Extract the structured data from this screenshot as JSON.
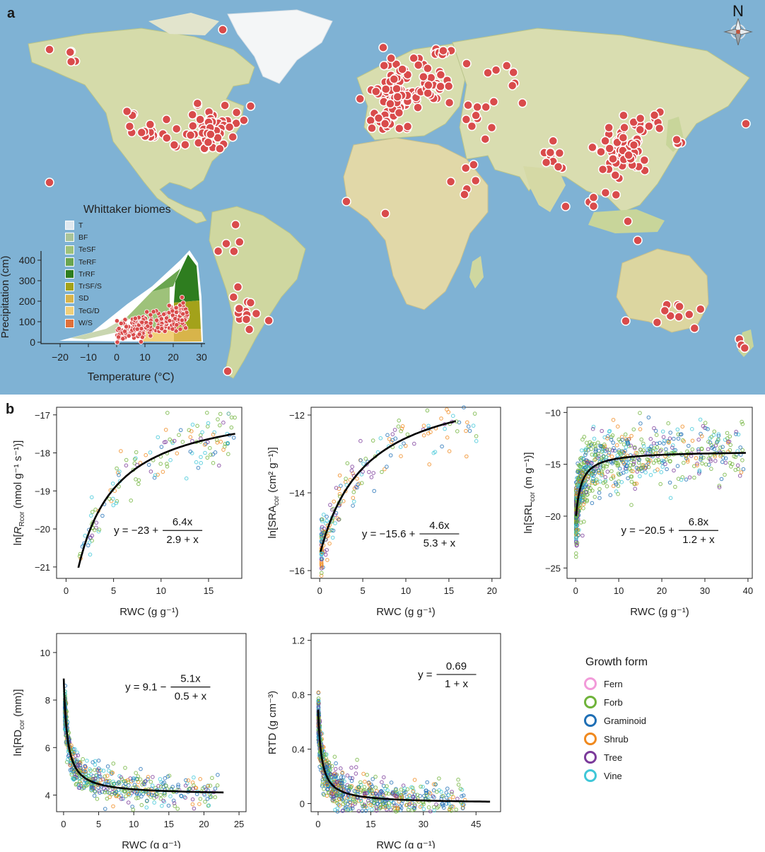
{
  "panel_a": {
    "letter": "a",
    "compass_label": "N",
    "biome_legend": {
      "title": "Whittaker biomes",
      "items": [
        {
          "label": "T",
          "color": "#dfe8ef"
        },
        {
          "label": "BF",
          "color": "#a9c49a"
        },
        {
          "label": "TeSF",
          "color": "#9ec27a"
        },
        {
          "label": "TeRF",
          "color": "#6aa54f"
        },
        {
          "label": "TrRF",
          "color": "#2e7d1f"
        },
        {
          "label": "TrSF/S",
          "color": "#a3a21a"
        },
        {
          "label": "SD",
          "color": "#d8b44a"
        },
        {
          "label": "TeG/D",
          "color": "#f0cf7a"
        },
        {
          "label": "W/S",
          "color": "#e0703a"
        }
      ]
    },
    "inset_chart": {
      "xlabel": "Temperature (°C)",
      "ylabel": "Precipitation (cm)",
      "xticks": [
        "-20",
        "-10",
        "0",
        "10",
        "20",
        "30"
      ],
      "yticks": [
        "0",
        "100",
        "200",
        "300",
        "400"
      ]
    },
    "colors": {
      "ocean": "#7fb2d4",
      "land": "#d9ddb0",
      "site": "#d94b4b"
    }
  },
  "panel_b": {
    "letter": "b",
    "growth_legend": {
      "title": "Growth form",
      "items": [
        {
          "label": "Fern",
          "color": "#f29ad9"
        },
        {
          "label": "Forb",
          "color": "#6fb33a"
        },
        {
          "label": "Graminoid",
          "color": "#1f6fb5"
        },
        {
          "label": "Shrub",
          "color": "#f0891e"
        },
        {
          "label": "Tree",
          "color": "#7b3a9a"
        },
        {
          "label": "Vine",
          "color": "#3fc7d8"
        }
      ]
    }
  },
  "chart_data": [
    {
      "type": "scatter",
      "id": "rr",
      "xlabel": "RWC (g g⁻¹)",
      "ylabel_pre": "ln[",
      "ylabel_main": "R",
      "ylabel_sub": "Rcor",
      "ylabel_post": " (nmol g⁻¹ s⁻¹)]",
      "xlim": [
        -1,
        18.5
      ],
      "ylim": [
        -21.3,
        -16.8
      ],
      "xticks": [
        0,
        5,
        10,
        15
      ],
      "yticks": [
        -17,
        -18,
        -19,
        -20,
        -21
      ],
      "ytick_labels": [
        "-17",
        "-18",
        "-19",
        "-20",
        "-21"
      ],
      "fit": {
        "a": -23,
        "sign": 1,
        "b": 6.4,
        "c": 2.9,
        "xmin": 1.3,
        "xmax": 17.8
      },
      "equation": {
        "lhs": "y = −23 +",
        "num": "6.4x",
        "den": "2.9 + x"
      },
      "cloud": {
        "n": 150,
        "xdist": "uniform",
        "xmin": 1.3,
        "xmax": 17.8,
        "sd": 0.38,
        "colors": [
          "#6fb33a",
          "#6fb33a",
          "#1f6fb5",
          "#f0891e",
          "#7b3a9a",
          "#3fc7d8"
        ]
      }
    },
    {
      "type": "scatter",
      "id": "sra",
      "xlabel": "RWC (g g⁻¹)",
      "ylabel_pre": "ln[",
      "ylabel_main": "SRA",
      "ylabel_sub": "cor",
      "ylabel_post": " (cm² g⁻¹)]",
      "xlim": [
        -1,
        21
      ],
      "ylim": [
        -16.2,
        -11.8
      ],
      "xticks": [
        0,
        5,
        10,
        15,
        20
      ],
      "yticks": [
        -12,
        -14,
        -16
      ],
      "ytick_labels": [
        "-12",
        "-14",
        "-16"
      ],
      "fit": {
        "a": -15.6,
        "sign": 1,
        "b": 4.6,
        "c": 5.3,
        "xmin": 0.1,
        "xmax": 15.8
      },
      "equation": {
        "lhs": "y = −15.6 +",
        "num": "4.6x",
        "den": "5.3 + x"
      },
      "cloud": {
        "n": 220,
        "xdist": "skew",
        "xmin": 0.2,
        "xmax": 19.5,
        "sd": 0.35,
        "colors": [
          "#6fb33a",
          "#1f6fb5",
          "#f0891e",
          "#f0891e",
          "#7b3a9a",
          "#3fc7d8"
        ]
      }
    },
    {
      "type": "scatter",
      "id": "srl",
      "xlabel": "RWC (g g⁻¹)",
      "ylabel_pre": "ln[",
      "ylabel_main": "SRL",
      "ylabel_sub": "cor",
      "ylabel_post": " (m g⁻¹)]",
      "xlim": [
        -2,
        41
      ],
      "ylim": [
        -26,
        -9.5
      ],
      "xticks": [
        0,
        10,
        20,
        30,
        40
      ],
      "yticks": [
        -10,
        -15,
        -20,
        -25
      ],
      "ytick_labels": [
        "-10",
        "-15",
        "-20",
        "-25"
      ],
      "fit": {
        "a": -20.5,
        "sign": 1,
        "b": 6.8,
        "c": 1.2,
        "xmin": 0.1,
        "xmax": 39.5
      },
      "equation": {
        "lhs": "y = −20.5 +",
        "num": "6.8x",
        "den": "1.2 + x"
      },
      "cloud": {
        "n": 900,
        "xdist": "skew",
        "xmin": 0.1,
        "xmax": 39,
        "sd": 1.4,
        "colors": [
          "#6fb33a",
          "#6fb33a",
          "#6fb33a",
          "#1f6fb5",
          "#1f6fb5",
          "#f0891e",
          "#7b3a9a",
          "#3fc7d8"
        ]
      }
    },
    {
      "type": "scatter",
      "id": "rd",
      "xlabel": "RWC (g g⁻¹)",
      "ylabel_pre": "ln[",
      "ylabel_main": "RD",
      "ylabel_sub": "cor",
      "ylabel_post": " (mm)]",
      "xlim": [
        -1,
        26
      ],
      "ylim": [
        3.3,
        10.8
      ],
      "xticks": [
        0,
        5,
        10,
        15,
        20,
        25
      ],
      "yticks": [
        4,
        6,
        8,
        10
      ],
      "ytick_labels": [
        "4",
        "6",
        "8",
        "10"
      ],
      "fit": {
        "a": 9.1,
        "sign": -1,
        "b": 5.1,
        "c": 0.5,
        "xmin": 0.02,
        "xmax": 22.8
      },
      "equation": {
        "lhs": "y = 9.1 −",
        "num": "5.1x",
        "den": "0.5 + x"
      },
      "cloud": {
        "n": 650,
        "xdist": "skew",
        "xmin": 0.2,
        "xmax": 22,
        "sd": 0.35,
        "colors": [
          "#6fb33a",
          "#6fb33a",
          "#1f6fb5",
          "#1f6fb5",
          "#f0891e",
          "#7b3a9a",
          "#3fc7d8"
        ]
      }
    },
    {
      "type": "scatter",
      "id": "rtd",
      "xlabel": "RWC (g g⁻¹)",
      "ylabel_pre": "",
      "ylabel_main": "RTD (g cm⁻³)",
      "ylabel_sub": "",
      "ylabel_post": "",
      "xlim": [
        -2,
        52
      ],
      "ylim": [
        -0.06,
        1.25
      ],
      "xticks": [
        0,
        15,
        30,
        45
      ],
      "yticks": [
        0,
        0.4,
        0.8,
        1.2
      ],
      "ytick_labels": [
        "0",
        "0.4",
        "0.8",
        "1.2"
      ],
      "fit": {
        "a": 0,
        "sign": 1,
        "b": 0.69,
        "c": 0,
        "recip": true,
        "xmin": 0.0,
        "xmax": 49
      },
      "equation": {
        "lhs": "y =",
        "num": "0.69",
        "den": "1 + x"
      },
      "cloud": {
        "n": 900,
        "xdist": "skew",
        "xmin": 0.1,
        "xmax": 42,
        "sd": 0.07,
        "colors": [
          "#6fb33a",
          "#6fb33a",
          "#1f6fb5",
          "#1f6fb5",
          "#f0891e",
          "#7b3a9a",
          "#3fc7d8"
        ]
      }
    }
  ]
}
